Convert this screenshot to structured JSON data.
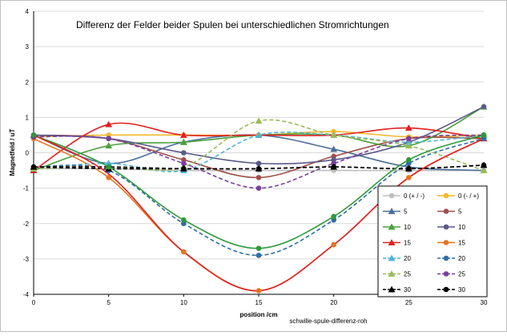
{
  "chart_data": {
    "type": "line",
    "title": "Differenz der Felder beider Spulen bei unterschiedlichen Stromrichtungen",
    "xlabel": "position /cm",
    "ylabel": "Magnetfeld / uT",
    "footer": "schwille-spule-differenz-roh",
    "x": [
      0,
      5,
      10,
      15,
      20,
      25,
      30
    ],
    "xlim": [
      0,
      30
    ],
    "ylim": [
      -4,
      4
    ],
    "xticks": [
      0,
      5,
      10,
      15,
      20,
      25,
      30
    ],
    "yticks": [
      -4,
      -3,
      -2,
      -1,
      0,
      1,
      2,
      3,
      4
    ],
    "grid": "horizontal",
    "legend_position": "bottom-right",
    "series": [
      {
        "name": "0 (+ / -)",
        "color": "#bfbfbf",
        "marker": "circle",
        "dash": "solid",
        "values": [
          -0.45,
          -0.45,
          -0.5,
          -0.5,
          -0.5,
          -0.5,
          -0.5
        ]
      },
      {
        "name": "0 (- / +)",
        "color": "#f5b82e",
        "marker": "circle",
        "dash": "solid",
        "values": [
          0.45,
          0.5,
          0.5,
          0.5,
          0.6,
          0.45,
          0.5
        ]
      },
      {
        "name": "5",
        "color": "#4a6f9a",
        "marker": "triangle",
        "dash": "solid",
        "values": [
          0.5,
          -0.3,
          0.3,
          0.5,
          0.1,
          -0.4,
          -0.5
        ]
      },
      {
        "name": "5",
        "color": "#a0504a",
        "marker": "circle",
        "dash": "solid",
        "values": [
          0.5,
          0.4,
          -0.2,
          -0.7,
          -0.1,
          0.4,
          0.4
        ]
      },
      {
        "name": "10",
        "color": "#4aa03a",
        "marker": "triangle",
        "dash": "solid",
        "values": [
          -0.5,
          0.2,
          0.3,
          0.5,
          0.5,
          0.2,
          1.3
        ]
      },
      {
        "name": "10",
        "color": "#5a5a8a",
        "marker": "circle",
        "dash": "solid",
        "values": [
          0.5,
          0.4,
          0.0,
          -0.3,
          -0.2,
          0.3,
          1.3
        ]
      },
      {
        "name": "15",
        "color": "#e02020",
        "marker": "triangle",
        "dash": "solid",
        "values": [
          -0.5,
          0.8,
          0.5,
          0.5,
          0.5,
          0.7,
          0.4
        ]
      },
      {
        "name": "15",
        "color": "#e8741e",
        "marker": "circle",
        "dash": "solid",
        "values": [
          0.4,
          -0.7,
          -2.8,
          -3.9,
          -2.6,
          -0.7,
          0.4
        ]
      },
      {
        "name": "20",
        "color": "#4fb3d9",
        "marker": "triangle",
        "dash": "dashed",
        "values": [
          -0.45,
          -0.3,
          -0.5,
          0.5,
          0.5,
          0.3,
          0.5
        ]
      },
      {
        "name": "20",
        "color": "#2f6ea5",
        "marker": "circle",
        "dash": "dashed",
        "values": [
          -0.4,
          -0.5,
          -2.0,
          -2.9,
          -1.9,
          -0.3,
          0.4
        ]
      },
      {
        "name": "25",
        "color": "#9bbb59",
        "marker": "triangle",
        "dash": "dashed",
        "values": [
          -0.45,
          -0.4,
          -0.4,
          0.9,
          0.5,
          0.2,
          -0.5
        ]
      },
      {
        "name": "25",
        "color": "#7a3fa0",
        "marker": "circle",
        "dash": "dashed",
        "values": [
          0.45,
          0.4,
          -0.3,
          -1.0,
          -0.3,
          0.4,
          0.5
        ]
      },
      {
        "name": "30",
        "color": "#000000",
        "marker": "triangle",
        "dash": "dashed",
        "values": [
          -0.4,
          -0.45,
          -0.45,
          -0.45,
          -0.4,
          -0.45,
          -0.35
        ]
      },
      {
        "name": "30",
        "color": "#000000",
        "marker": "circle",
        "dash": "dashed",
        "values": [
          -0.4,
          -0.4,
          -0.45,
          -0.45,
          -0.4,
          -0.45,
          -0.35
        ]
      }
    ],
    "extra_curves": [
      {
        "color": "#2e9a3a",
        "marker": "circle",
        "dash": "solid",
        "values": [
          0.5,
          -0.4,
          -1.9,
          -2.7,
          -1.8,
          -0.2,
          0.5
        ]
      },
      {
        "color": "#e02020",
        "marker": "none",
        "dash": "solid",
        "values": [
          0.5,
          -0.6,
          -2.8,
          -3.9,
          -2.6,
          -0.7,
          0.4
        ]
      }
    ]
  }
}
